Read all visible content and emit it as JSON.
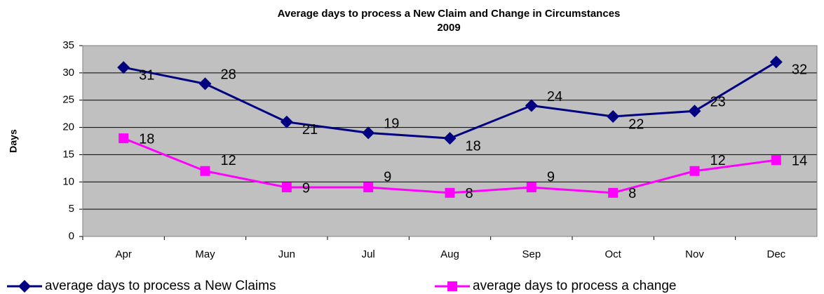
{
  "chart_data": {
    "type": "line",
    "title": "Average days to process a New Claim and Change in Circumstances",
    "subtitle": "2009",
    "y_label": "Days",
    "categories": [
      "Apr",
      "May",
      "Jun",
      "Jul",
      "Aug",
      "Sep",
      "Oct",
      "Nov",
      "Dec"
    ],
    "series": [
      {
        "name": "average days to process a New Claims",
        "color": "#000080",
        "marker": "diamond",
        "values": [
          31,
          28,
          21,
          19,
          18,
          24,
          22,
          23,
          32
        ]
      },
      {
        "name": "average days to process a change",
        "color": "#ff00ff",
        "marker": "square",
        "values": [
          18,
          12,
          9,
          9,
          8,
          9,
          8,
          12,
          14
        ]
      }
    ],
    "ylim": [
      0,
      35
    ],
    "yticks": [
      0,
      5,
      10,
      15,
      20,
      25,
      30,
      35
    ],
    "grid": true,
    "legend": "bottom"
  }
}
